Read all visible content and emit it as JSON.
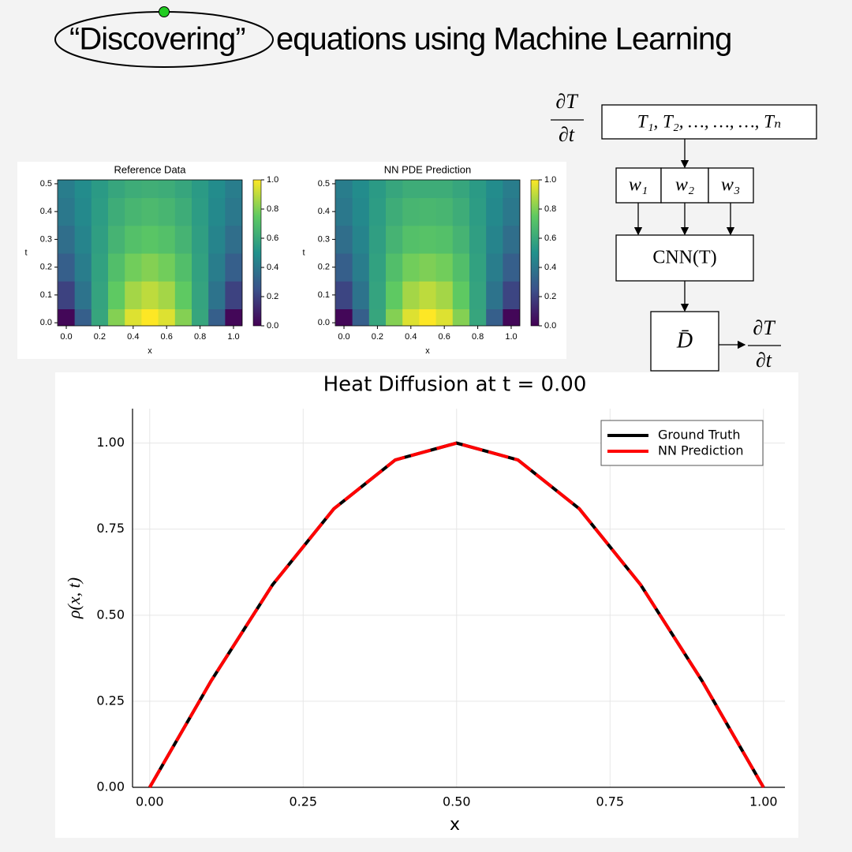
{
  "title": {
    "highlight": "“Discovering”",
    "rest": "equations using Machine Learning"
  },
  "diagram": {
    "input_derivative": {
      "numerator": "∂T",
      "denominator": "∂t"
    },
    "inputs": "T₁, T₂, …, …, …, Tₙ",
    "weights": [
      "w₁",
      "w₂",
      "w₃"
    ],
    "network": "CNN(T)",
    "operator": "D̄",
    "output_derivative": {
      "numerator": "∂T",
      "denominator": "∂t"
    }
  },
  "chart_data": [
    {
      "type": "heatmap",
      "title": "Reference Data",
      "xlabel": "x",
      "ylabel": "t",
      "colormap": "viridis",
      "x": [
        0.0,
        0.1,
        0.2,
        0.3,
        0.4,
        0.5,
        0.6,
        0.7,
        0.8,
        0.9,
        1.0
      ],
      "y": [
        0.0,
        0.1,
        0.2,
        0.3,
        0.4,
        0.5
      ],
      "z": [
        [
          0.02,
          0.3,
          0.59,
          0.81,
          0.95,
          1.0,
          0.95,
          0.81,
          0.59,
          0.3,
          0.02
        ],
        [
          0.2,
          0.38,
          0.58,
          0.75,
          0.86,
          0.9,
          0.86,
          0.75,
          0.58,
          0.38,
          0.2
        ],
        [
          0.3,
          0.42,
          0.57,
          0.7,
          0.78,
          0.81,
          0.78,
          0.7,
          0.57,
          0.42,
          0.3
        ],
        [
          0.36,
          0.45,
          0.56,
          0.65,
          0.71,
          0.73,
          0.71,
          0.65,
          0.56,
          0.45,
          0.36
        ],
        [
          0.4,
          0.47,
          0.55,
          0.62,
          0.66,
          0.68,
          0.66,
          0.62,
          0.55,
          0.47,
          0.4
        ],
        [
          0.42,
          0.48,
          0.54,
          0.59,
          0.62,
          0.63,
          0.62,
          0.59,
          0.54,
          0.48,
          0.42
        ]
      ],
      "xlim": [
        -0.052,
        1.052
      ],
      "ylim": [
        -0.011,
        0.514
      ],
      "xticks": [
        {
          "value": 0,
          "label": "0.0"
        },
        0.2,
        0.4,
        0.6,
        0.8,
        {
          "value": 1,
          "label": "1.0"
        }
      ],
      "yticks": [
        {
          "value": 0,
          "label": "0.0"
        },
        0.1,
        0.2,
        0.3,
        0.4,
        0.5
      ],
      "clim": [
        0,
        1
      ],
      "cticks": [
        {
          "value": 0,
          "label": "0.0"
        },
        0.2,
        0.4,
        0.6,
        0.8,
        {
          "value": 1,
          "label": "1.0"
        }
      ]
    },
    {
      "type": "heatmap",
      "title": "NN PDE Prediction",
      "xlabel": "x",
      "ylabel": "t",
      "colormap": "viridis",
      "x": [
        0.0,
        0.1,
        0.2,
        0.3,
        0.4,
        0.5,
        0.6,
        0.7,
        0.8,
        0.9,
        1.0
      ],
      "y": [
        0.0,
        0.1,
        0.2,
        0.3,
        0.4,
        0.5
      ],
      "z": [
        [
          0.02,
          0.3,
          0.59,
          0.81,
          0.95,
          1.0,
          0.95,
          0.81,
          0.59,
          0.3,
          0.02
        ],
        [
          0.21,
          0.38,
          0.58,
          0.75,
          0.86,
          0.9,
          0.86,
          0.75,
          0.58,
          0.38,
          0.21
        ],
        [
          0.3,
          0.42,
          0.57,
          0.7,
          0.78,
          0.8,
          0.78,
          0.7,
          0.57,
          0.42,
          0.3
        ],
        [
          0.36,
          0.45,
          0.56,
          0.65,
          0.71,
          0.72,
          0.71,
          0.65,
          0.56,
          0.45,
          0.36
        ],
        [
          0.4,
          0.47,
          0.55,
          0.62,
          0.66,
          0.67,
          0.66,
          0.62,
          0.55,
          0.47,
          0.4
        ],
        [
          0.42,
          0.48,
          0.54,
          0.59,
          0.62,
          0.62,
          0.62,
          0.59,
          0.54,
          0.48,
          0.42
        ]
      ],
      "xlim": [
        -0.052,
        1.052
      ],
      "ylim": [
        -0.011,
        0.514
      ],
      "xticks": [
        {
          "value": 0,
          "label": "0.0"
        },
        0.2,
        0.4,
        0.6,
        0.8,
        {
          "value": 1,
          "label": "1.0"
        }
      ],
      "yticks": [
        {
          "value": 0,
          "label": "0.0"
        },
        0.1,
        0.2,
        0.3,
        0.4,
        0.5
      ],
      "clim": [
        0,
        1
      ],
      "cticks": [
        {
          "value": 0,
          "label": "0.0"
        },
        0.2,
        0.4,
        0.6,
        0.8,
        {
          "value": 1,
          "label": "1.0"
        }
      ]
    },
    {
      "type": "line",
      "title": "Heat Diffusion at t = 0.00",
      "xlabel": "x",
      "ylabel": "ρ(x, t)",
      "x": [
        0.0,
        0.1,
        0.2,
        0.3,
        0.4,
        0.5,
        0.6,
        0.7,
        0.8,
        0.9,
        1.0
      ],
      "series": [
        {
          "name": "Ground Truth",
          "color": "#000000",
          "linestyle": "solid",
          "values": [
            0.0,
            0.309,
            0.588,
            0.809,
            0.951,
            1.0,
            0.951,
            0.809,
            0.588,
            0.309,
            0.0
          ]
        },
        {
          "name": "NN Prediction",
          "color": "#ff0000",
          "linestyle": "dashed",
          "values": [
            0.0,
            0.309,
            0.588,
            0.809,
            0.951,
            1.0,
            0.951,
            0.809,
            0.588,
            0.309,
            0.0
          ]
        }
      ],
      "xlim": [
        -0.028,
        1.035
      ],
      "ylim": [
        0,
        1.1
      ],
      "xticks": [
        {
          "value": 0,
          "label": "0.00"
        },
        {
          "value": 0.25,
          "label": "0.25"
        },
        {
          "value": 0.5,
          "label": "0.50"
        },
        {
          "value": 0.75,
          "label": "0.75"
        },
        {
          "value": 1,
          "label": "1.00"
        }
      ],
      "yticks": [
        {
          "value": 0,
          "label": "0.00"
        },
        {
          "value": 0.25,
          "label": "0.25"
        },
        {
          "value": 0.5,
          "label": "0.50"
        },
        {
          "value": 0.75,
          "label": "0.75"
        },
        {
          "value": 1,
          "label": "1.00"
        }
      ],
      "grid": true,
      "legend": "upper right"
    }
  ]
}
